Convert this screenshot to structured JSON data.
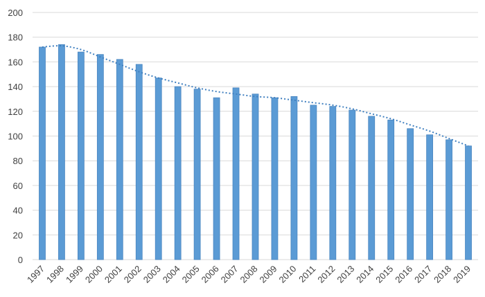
{
  "chart_data": {
    "type": "bar",
    "categories": [
      "1997",
      "1998",
      "1999",
      "2000",
      "2001",
      "2002",
      "2003",
      "2004",
      "2005",
      "2006",
      "2007",
      "2008",
      "2009",
      "2010",
      "2011",
      "2012",
      "2013",
      "2014",
      "2015",
      "2016",
      "2017",
      "2018",
      "2019"
    ],
    "values": [
      172,
      174,
      168,
      166,
      162,
      158,
      147,
      140,
      138,
      131,
      139,
      134,
      131,
      132,
      125,
      124,
      121,
      116,
      113,
      106,
      101,
      97,
      92
    ],
    "trendline": {
      "style": "dotted",
      "values": [
        172,
        173,
        170,
        164,
        158,
        152,
        147,
        143,
        139,
        136,
        134,
        132,
        131,
        129,
        127,
        125,
        122,
        118,
        114,
        109,
        104,
        98,
        92
      ]
    },
    "title": "",
    "xlabel": "",
    "ylabel": "",
    "ylim": [
      0,
      200
    ],
    "yticks": [
      0,
      20,
      40,
      60,
      80,
      100,
      120,
      140,
      160,
      180,
      200
    ],
    "grid": true,
    "legend": "none",
    "colors": {
      "bar": "#5b9bd5",
      "trend": "#3f7fbf",
      "grid": "#d9d9d9",
      "text": "#404040"
    }
  }
}
